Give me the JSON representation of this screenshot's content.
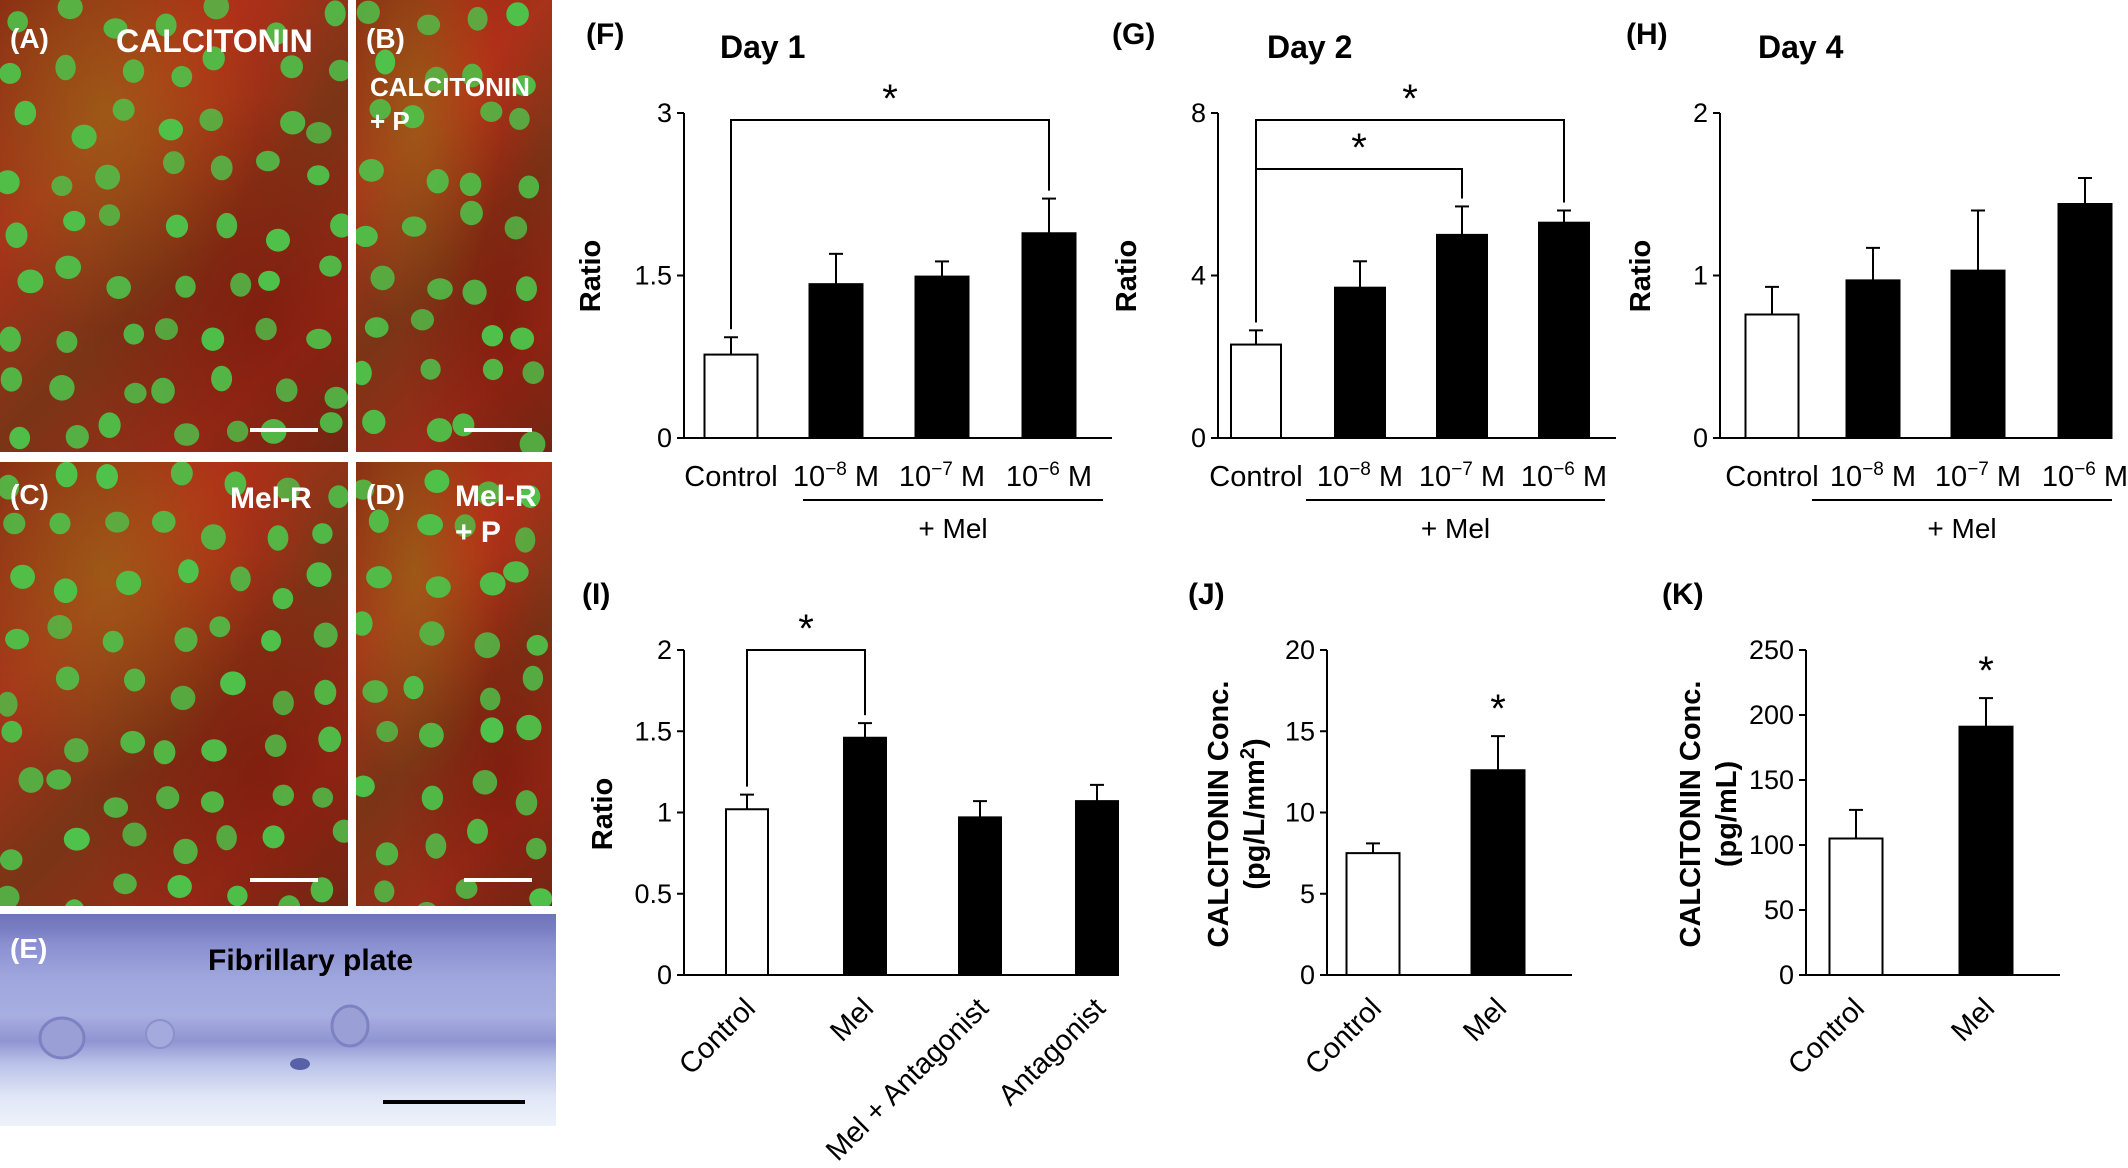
{
  "panels": {
    "A": {
      "tag": "(A)",
      "label": "CALCITONIN"
    },
    "B": {
      "tag": "(B)",
      "label_line1": "CALCITONIN",
      "label_line2": "+ P"
    },
    "C": {
      "tag": "(C)",
      "label": "Mel-R"
    },
    "D": {
      "tag": "(D)",
      "label_line1": "Mel-R",
      "label_line2": "+ P"
    },
    "E": {
      "tag": "(E)",
      "label": "Fibrillary plate"
    }
  },
  "colors": {
    "control_bar": "#ffffff",
    "mel_bar": "#000000",
    "nuclei": "#4ec24a",
    "histo": "#8a8fd0"
  },
  "chart_data": [
    {
      "panel": "(F)",
      "type": "bar",
      "title": "Day 1",
      "ylabel": "Ratio",
      "ylim": [
        0,
        3
      ],
      "yticks": [
        "0",
        "1.5",
        "3"
      ],
      "categories": [
        "Control",
        "10",
        "10",
        "10"
      ],
      "unit_prefix": "10",
      "exponents": [
        "",
        "−8",
        "−7",
        "−6"
      ],
      "unit": "M",
      "group_label": "+ Mel",
      "values": [
        0.77,
        1.42,
        1.49,
        1.89
      ],
      "errors": [
        0.16,
        0.28,
        0.14,
        0.32
      ],
      "fills": [
        "white",
        "black",
        "black",
        "black"
      ],
      "significance": [
        {
          "from": 0,
          "to": 3,
          "mark": "*"
        }
      ]
    },
    {
      "panel": "(G)",
      "type": "bar",
      "title": "Day 2",
      "ylabel": "Ratio",
      "ylim": [
        0,
        8
      ],
      "yticks": [
        "0",
        "4",
        "8"
      ],
      "categories": [
        "Control",
        "10",
        "10",
        "10"
      ],
      "unit_prefix": "10",
      "exponents": [
        "",
        "−8",
        "−7",
        "−6"
      ],
      "unit": "M",
      "group_label": "+ Mel",
      "values": [
        2.3,
        3.7,
        5.0,
        5.3
      ],
      "errors": [
        0.35,
        0.65,
        0.7,
        0.3
      ],
      "fills": [
        "white",
        "black",
        "black",
        "black"
      ],
      "significance": [
        {
          "from": 0,
          "to": 2,
          "mark": "*"
        },
        {
          "from": 0,
          "to": 3,
          "mark": "*"
        }
      ]
    },
    {
      "panel": "(H)",
      "type": "bar",
      "title": "Day 4",
      "ylabel": "Ratio",
      "ylim": [
        0,
        2
      ],
      "yticks": [
        "0",
        "1",
        "2"
      ],
      "categories": [
        "Control",
        "10",
        "10",
        "10"
      ],
      "unit_prefix": "10",
      "exponents": [
        "",
        "−8",
        "−7",
        "−6"
      ],
      "unit": "M",
      "group_label": "+ Mel",
      "values": [
        0.76,
        0.97,
        1.03,
        1.44
      ],
      "errors": [
        0.17,
        0.2,
        0.37,
        0.16
      ],
      "fills": [
        "white",
        "black",
        "black",
        "black"
      ],
      "significance": []
    },
    {
      "panel": "(I)",
      "type": "bar",
      "title": "",
      "ylabel": "Ratio",
      "ylim": [
        0,
        2
      ],
      "yticks": [
        "0",
        "0.5",
        "1",
        "1.5",
        "2"
      ],
      "categories": [
        "Control",
        "Mel",
        "Mel + Antagonist",
        "Antagonist"
      ],
      "values": [
        1.02,
        1.46,
        0.97,
        1.07
      ],
      "errors": [
        0.09,
        0.09,
        0.1,
        0.1
      ],
      "fills": [
        "white",
        "black",
        "black",
        "black"
      ],
      "significance": [
        {
          "from": 0,
          "to": 1,
          "mark": "*"
        }
      ]
    },
    {
      "panel": "(J)",
      "type": "bar",
      "title": "",
      "ylabel_line1": "CALCITONIN Conc.",
      "ylabel_line2": "(pg/L/mm",
      "ylabel_sup": "2",
      "ylabel_close": ")",
      "ylim": [
        0,
        20
      ],
      "yticks": [
        "0",
        "5",
        "10",
        "15",
        "20"
      ],
      "categories": [
        "Control",
        "Mel"
      ],
      "values": [
        7.5,
        12.6
      ],
      "errors": [
        0.6,
        2.1
      ],
      "fills": [
        "white",
        "black"
      ],
      "significance": [
        {
          "over": 1,
          "mark": "*"
        }
      ]
    },
    {
      "panel": "(K)",
      "type": "bar",
      "title": "",
      "ylabel_line1": "CALCITONIN Conc.",
      "ylabel_line2": "(pg/mL)",
      "ylim": [
        0,
        250
      ],
      "yticks": [
        "0",
        "50",
        "100",
        "150",
        "200",
        "250"
      ],
      "categories": [
        "Control",
        "Mel"
      ],
      "values": [
        105,
        191
      ],
      "errors": [
        22,
        22
      ],
      "fills": [
        "white",
        "black"
      ],
      "significance": [
        {
          "over": 1,
          "mark": "*"
        }
      ]
    }
  ]
}
